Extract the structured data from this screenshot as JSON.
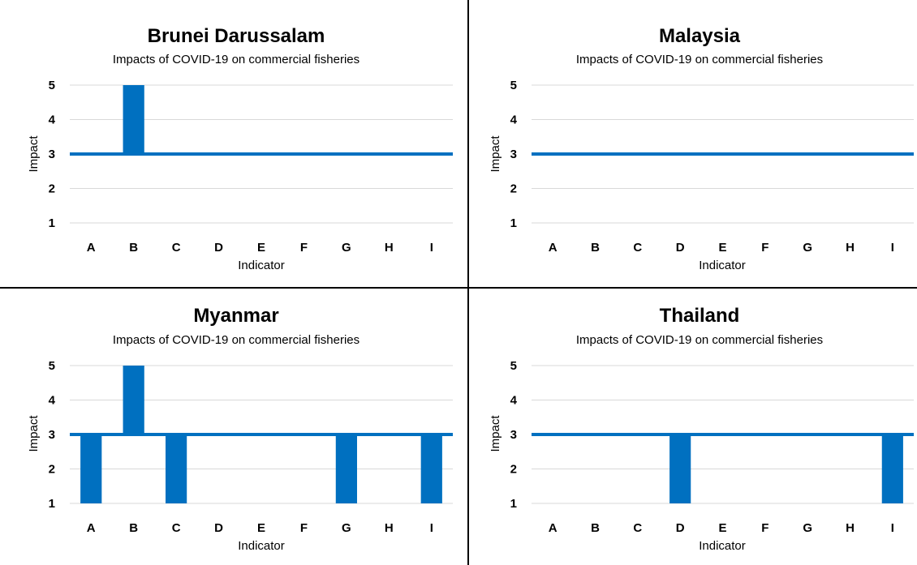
{
  "chart_data": [
    {
      "type": "bar",
      "title": "Brunei Darussalam",
      "subtitle": "Impacts of COVID-19 on commercial fisheries",
      "xlabel": "Indicator",
      "ylabel": "Impact",
      "categories": [
        "A",
        "B",
        "C",
        "D",
        "E",
        "F",
        "G",
        "H",
        "I"
      ],
      "values": [
        3,
        5,
        3,
        3,
        3,
        3,
        3,
        3,
        3
      ],
      "baseline": 3,
      "ylim": [
        1,
        5
      ],
      "yticks": [
        1,
        2,
        3,
        4,
        5
      ],
      "grid": true,
      "color": "#0070c0"
    },
    {
      "type": "bar",
      "title": "Malaysia",
      "subtitle": "Impacts of COVID-19 on commercial fisheries",
      "xlabel": "Indicator",
      "ylabel": "Impact",
      "categories": [
        "A",
        "B",
        "C",
        "D",
        "E",
        "F",
        "G",
        "H",
        "I"
      ],
      "values": [
        3,
        3,
        3,
        3,
        3,
        3,
        3,
        3,
        3
      ],
      "baseline": 3,
      "ylim": [
        1,
        5
      ],
      "yticks": [
        1,
        2,
        3,
        4,
        5
      ],
      "grid": true,
      "color": "#0070c0"
    },
    {
      "type": "bar",
      "title": "Myanmar",
      "subtitle": "Impacts of COVID-19 on commercial fisheries",
      "xlabel": "Indicator",
      "ylabel": "Impact",
      "categories": [
        "A",
        "B",
        "C",
        "D",
        "E",
        "F",
        "G",
        "H",
        "I"
      ],
      "values": [
        1,
        5,
        1,
        3,
        3,
        3,
        1,
        3,
        1
      ],
      "baseline": 3,
      "ylim": [
        1,
        5
      ],
      "yticks": [
        1,
        2,
        3,
        4,
        5
      ],
      "grid": true,
      "color": "#0070c0"
    },
    {
      "type": "bar",
      "title": "Thailand",
      "subtitle": "Impacts of COVID-19 on commercial fisheries",
      "xlabel": "Indicator",
      "ylabel": "Impact",
      "categories": [
        "A",
        "B",
        "C",
        "D",
        "E",
        "F",
        "G",
        "H",
        "I"
      ],
      "values": [
        3,
        3,
        3,
        1,
        3,
        3,
        3,
        3,
        1
      ],
      "baseline": 3,
      "ylim": [
        1,
        5
      ],
      "yticks": [
        1,
        2,
        3,
        4,
        5
      ],
      "grid": true,
      "color": "#0070c0"
    }
  ]
}
